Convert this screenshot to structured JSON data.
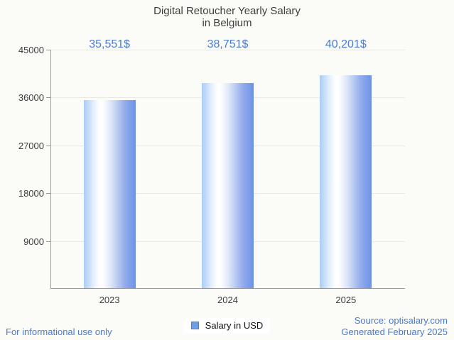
{
  "title": {
    "line1": "Digital Retoucher Yearly Salary",
    "line2": "in Belgium"
  },
  "chart_data": {
    "type": "bar",
    "categories": [
      "2023",
      "2024",
      "2025"
    ],
    "series": [
      {
        "name": "Salary in USD",
        "values": [
          35551,
          38751,
          40201
        ]
      }
    ],
    "value_labels": [
      "35,551$",
      "38,751$",
      "40,201$"
    ],
    "title": "Digital Retoucher Yearly Salary in Belgium",
    "xlabel": "",
    "ylabel": "",
    "ylim": [
      0,
      45000
    ],
    "yticks": [
      9000,
      18000,
      27000,
      36000,
      45000
    ],
    "grid": true,
    "legend_position": "bottom-center"
  },
  "legend": {
    "label": "Salary in USD",
    "swatch_color": "#6c9fe3",
    "swatch_border": "#4d7fc4"
  },
  "footer": {
    "left": "For informational use only",
    "source": "Source: optisalary.com",
    "generated": "Generated February 2025"
  },
  "colors": {
    "background": "#fbfbf8",
    "title_text": "#3e3e3e",
    "tick_text": "#3c3c3c",
    "value_label": "#4a7cd6",
    "footer_text": "#4a7bd4",
    "axis": "#9a9a9a",
    "gridline": "#e8e8e4",
    "bar_gradient_css": "linear-gradient(90deg, #a9cdf5 0%, #e7f1fd 20%, #ffffff 30%, #ffffff 36%, #dde7f8 52%, #96aeec 78%, #6b92e8 100%)"
  }
}
